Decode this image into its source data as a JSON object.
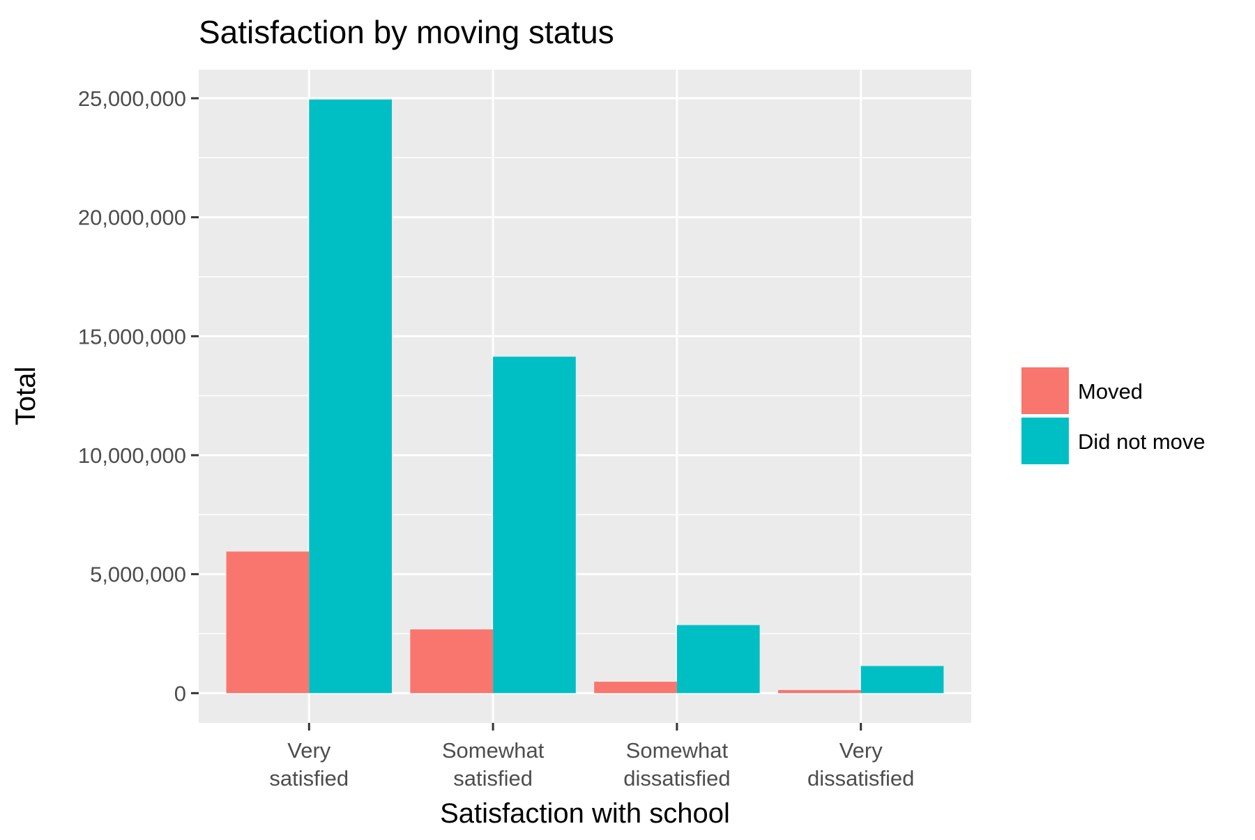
{
  "chart_data": {
    "type": "bar",
    "title": "Satisfaction by moving status",
    "xlabel": "Satisfaction with school",
    "ylabel": "Total",
    "categories": [
      [
        "Very",
        "satisfied"
      ],
      [
        "Somewhat",
        "satisfied"
      ],
      [
        "Somewhat",
        "dissatisfied"
      ],
      [
        "Very",
        "dissatisfied"
      ]
    ],
    "series": [
      {
        "name": "Moved",
        "color": "#F8766D",
        "values": [
          5950000,
          2680000,
          480000,
          130000
        ]
      },
      {
        "name": "Did not move",
        "color": "#00BFC4",
        "values": [
          24950000,
          14140000,
          2860000,
          1140000
        ]
      }
    ],
    "yticks": [
      0,
      5000000,
      10000000,
      15000000,
      20000000,
      25000000
    ],
    "ytick_labels": [
      "0",
      "5,000,000",
      "10,000,000",
      "15,000,000",
      "20,000,000",
      "25,000,000"
    ],
    "ylim": [
      -1250000,
      26200000
    ],
    "grid": true,
    "panel_background": "#EBEBEB",
    "legend_position": "right"
  }
}
